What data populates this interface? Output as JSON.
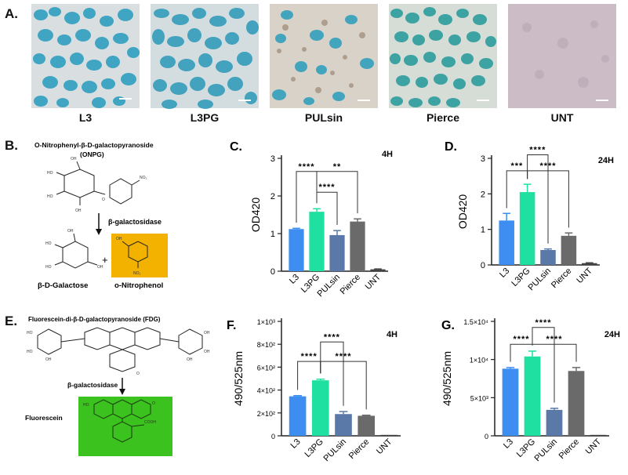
{
  "panel_a": {
    "label": "A.",
    "images": [
      {
        "caption": "L3"
      },
      {
        "caption": "L3PG"
      },
      {
        "caption": "PULsin"
      },
      {
        "caption": "Pierce"
      },
      {
        "caption": "UNT"
      }
    ]
  },
  "panel_b": {
    "label": "B.",
    "substrate_name": "O-Nitrophenyl-β-D-galactopyranoside",
    "substrate_abbr": "(ONPG)",
    "enzyme": "β-galactosidase",
    "product_1": "β-D-Galactose",
    "product_2": "o-Nitrophenol",
    "plus": "+",
    "highlight_color": "#f4b200"
  },
  "panel_e": {
    "label": "E.",
    "substrate_name": "Fluorescein-di-β-D-galactopyranoside (FDG)",
    "enzyme": "β-galactosidase",
    "product": "Fluorescein",
    "highlight_color": "#3cc21e"
  },
  "series_colors": {
    "L3": "#3d8ef0",
    "L3PG": "#1fe0a0",
    "PULsin": "#5a78a8",
    "Pierce": "#6a6a6a",
    "UNT": "#444444"
  },
  "chart_data": [
    {
      "panel": "C.",
      "type": "bar",
      "title": "4H",
      "categories": [
        "L3",
        "L3PG",
        "PULsin",
        "Pierce",
        "UNT"
      ],
      "values": [
        1.12,
        1.58,
        0.96,
        1.32,
        0.05
      ],
      "errors": [
        0.02,
        0.08,
        0.12,
        0.07,
        0.01
      ],
      "ylabel": "OD420",
      "ylim": [
        0,
        3
      ],
      "yticks": [
        0,
        1,
        2,
        3
      ],
      "ytick_labels": [
        "0",
        "1",
        "2",
        "3"
      ],
      "significance": [
        {
          "from": 0,
          "to": 1,
          "label": "****",
          "y": 2.65
        },
        {
          "from": 1,
          "to": 3,
          "label": "**",
          "y": 2.65
        },
        {
          "from": 1,
          "to": 2,
          "label": "****",
          "y": 2.1
        }
      ]
    },
    {
      "panel": "D.",
      "type": "bar",
      "title": "24H",
      "categories": [
        "L3",
        "L3PG",
        "PULsin",
        "Pierce",
        "UNT"
      ],
      "values": [
        1.25,
        2.05,
        0.42,
        0.82,
        0.05
      ],
      "errors": [
        0.2,
        0.22,
        0.03,
        0.08,
        0.01
      ],
      "ylabel": "OD420",
      "ylim": [
        0,
        3
      ],
      "yticks": [
        0,
        1,
        2,
        3
      ],
      "ytick_labels": [
        "0",
        "1",
        "2",
        "3"
      ],
      "significance": [
        {
          "from": 1,
          "to": 2,
          "label": "****",
          "y": 3.1
        },
        {
          "from": 0,
          "to": 1,
          "label": "***",
          "y": 2.65
        },
        {
          "from": 1,
          "to": 3,
          "label": "****",
          "y": 2.65
        }
      ]
    },
    {
      "panel": "F.",
      "type": "bar",
      "title": "4H",
      "categories": [
        "L3",
        "L3PG",
        "PULsin",
        "Pierce",
        "UNT"
      ],
      "values": [
        345,
        485,
        190,
        175,
        2
      ],
      "errors": [
        6,
        10,
        22,
        5,
        0
      ],
      "ylabel": "490/525nm",
      "ylim": [
        0,
        1000
      ],
      "yticks": [
        0,
        200,
        400,
        600,
        800,
        1000
      ],
      "ytick_labels": [
        "0",
        "2×10²",
        "4×10²",
        "6×10²",
        "8×10²",
        "1×10³"
      ],
      "significance": [
        {
          "from": 1,
          "to": 2,
          "label": "****",
          "y": 820
        },
        {
          "from": 0,
          "to": 1,
          "label": "****",
          "y": 650
        },
        {
          "from": 1,
          "to": 3,
          "label": "****",
          "y": 650
        }
      ]
    },
    {
      "panel": "G.",
      "type": "bar",
      "title": "24H",
      "categories": [
        "L3",
        "L3PG",
        "PULsin",
        "Pierce",
        "UNT"
      ],
      "values": [
        8800,
        10400,
        3400,
        8500,
        100
      ],
      "errors": [
        150,
        700,
        200,
        450,
        0
      ],
      "ylabel": "490/525nm",
      "ylim": [
        0,
        15000
      ],
      "yticks": [
        0,
        5000,
        10000,
        15000
      ],
      "ytick_labels": [
        "0",
        "5×10³",
        "1×10⁴",
        "1.5×10⁴"
      ],
      "significance": [
        {
          "from": 1,
          "to": 2,
          "label": "****",
          "y": 14200
        },
        {
          "from": 0,
          "to": 1,
          "label": "****",
          "y": 12000
        },
        {
          "from": 1,
          "to": 3,
          "label": "****",
          "y": 12000
        }
      ]
    }
  ]
}
